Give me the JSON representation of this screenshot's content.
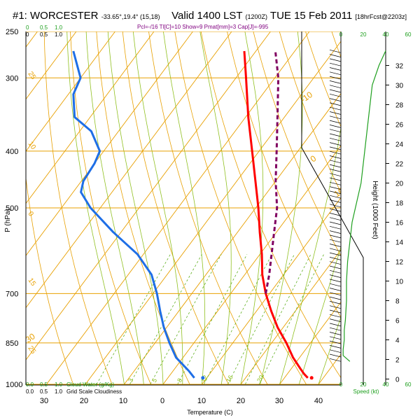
{
  "header": {
    "station": "#1: WORCESTER",
    "coords": "-33.65°,19.4° (15,18)",
    "valid": "Valid 1400 LST",
    "utc": "(1200Z)",
    "date": "TUE 15 Feb 2011",
    "forecast": "[18hrFcst@2203z]",
    "indices": "Pcl=-/16 Tl[C]=10 Show=9 Pmat[mm]=3 Cap[J]=-995"
  },
  "chart_data": {
    "type": "skewt",
    "xlabel": "Temperature (C)",
    "ylabel": "P (hPa)",
    "y2label": "Height (1000 Feet)",
    "wind_label": "Speed (kt)",
    "cloud_water_label": "Cloud Water (g/Kg)",
    "cloudiness_label": "Grid Scale Cloudiness",
    "temp_ticks": [
      30,
      20,
      10,
      0,
      10,
      20,
      30,
      40
    ],
    "pressure_ticks": [
      250,
      300,
      400,
      500,
      700,
      850,
      1000
    ],
    "height_ticks": [
      0,
      2,
      4,
      6,
      8,
      10,
      12,
      14,
      16,
      18,
      20,
      22,
      24,
      26,
      28,
      30,
      32
    ],
    "cloud_ticks": [
      "0.0",
      "0.5",
      "1.0"
    ],
    "cloud_top_ticks": [
      "0",
      "0.5",
      "1.0"
    ],
    "speed_ticks": [
      0,
      20,
      40,
      60
    ],
    "temperature_profile": {
      "p": [
        975,
        960,
        940,
        900,
        850,
        800,
        750,
        700,
        650,
        600,
        550,
        500,
        450,
        400,
        350,
        300,
        270
      ],
      "t": [
        36,
        34.3,
        32.3,
        28.3,
        23.8,
        18.6,
        13.8,
        9,
        4.5,
        0.5,
        -4.3,
        -9.3,
        -15.2,
        -21.8,
        -29.3,
        -37.4,
        -43
      ]
    },
    "dewpoint_profile": {
      "p": [
        975,
        950,
        900,
        850,
        800,
        750,
        700,
        650,
        600,
        550,
        500,
        470,
        450,
        420,
        400,
        370,
        350,
        320,
        300,
        270
      ],
      "td": [
        6.8,
        4.2,
        -1.8,
        -6.3,
        -10.7,
        -14.8,
        -19,
        -24,
        -31.5,
        -42,
        -52.5,
        -58,
        -59.5,
        -60,
        -61,
        -67,
        -74,
        -78.7,
        -80,
        -87
      ]
    },
    "parcel_profile": {
      "p": [
        700,
        650,
        600,
        550,
        500,
        450,
        400,
        350,
        300,
        270
      ],
      "t": [
        9,
        6.3,
        3,
        -0.6,
        -4.5,
        -10,
        -15.5,
        -21.8,
        -29.1,
        -35
      ]
    },
    "surface_points": [
      {
        "name": "temperature",
        "p": 975,
        "t": 37
      },
      {
        "name": "dewpoint",
        "p": 975,
        "t": 9
      }
    ],
    "isotherm_labels": [
      -10,
      0,
      10,
      20,
      30
    ],
    "dry_adiabat_labels": [
      25,
      10,
      0,
      15,
      25,
      35
    ],
    "mixing_ratio_labels": [
      2,
      3,
      5,
      8,
      12,
      16,
      20
    ],
    "wind_speed_curve": {
      "height_kft": [
        1.8,
        2.4,
        3,
        4,
        5,
        6,
        8,
        10,
        12,
        14,
        16,
        18,
        20,
        22,
        24,
        26,
        28,
        30,
        32,
        33.5
      ],
      "speed_kt": [
        8,
        2,
        2,
        3,
        3,
        4,
        5,
        5,
        6,
        8,
        10,
        14,
        18,
        20,
        22,
        24,
        26,
        28,
        34,
        40
      ]
    },
    "grid": true
  }
}
